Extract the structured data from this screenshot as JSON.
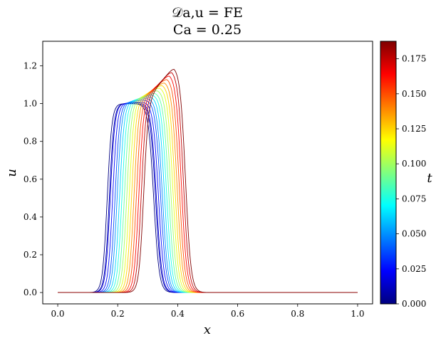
{
  "chart_data": {
    "type": "line",
    "title_lines": [
      "𝒟a,u = FE",
      "Ca = 0.25"
    ],
    "xlabel": "x",
    "ylabel": "u",
    "xlim": [
      -0.05,
      1.05
    ],
    "ylim": [
      -0.06,
      1.33
    ],
    "x_ticks": [
      0.0,
      0.2,
      0.4,
      0.6,
      0.8,
      1.0
    ],
    "x_tick_labels": [
      "0.0",
      "0.2",
      "0.4",
      "0.6",
      "0.8",
      "1.0"
    ],
    "y_ticks": [
      0.0,
      0.2,
      0.4,
      0.6,
      0.8,
      1.0,
      1.2
    ],
    "y_tick_labels": [
      "0.0",
      "0.2",
      "0.4",
      "0.6",
      "0.8",
      "1.0",
      "1.2"
    ],
    "grid": false,
    "colorbar": {
      "label": "t",
      "colormap": "jet",
      "range": [
        0.0,
        0.1875
      ],
      "ticks": [
        0.0,
        0.025,
        0.05,
        0.075,
        0.1,
        0.125,
        0.15,
        0.175
      ],
      "tick_labels": [
        "0.000",
        "0.025",
        "0.050",
        "0.075",
        "0.100",
        "0.125",
        "0.150",
        "0.175"
      ]
    },
    "series": [
      {
        "t": 0.0,
        "left_edge": 0.165,
        "peak_x": 0.198,
        "peak": 1.0,
        "right_edge": 0.32
      },
      {
        "t": 0.0125,
        "left_edge": 0.172,
        "peak_x": 0.205,
        "peak": 1.0,
        "right_edge": 0.326
      },
      {
        "t": 0.0125,
        "left_edge": 0.175,
        "peak_x": 0.208,
        "peak": 1.005,
        "right_edge": 0.329
      },
      {
        "t": 0.025,
        "left_edge": 0.183,
        "peak_x": 0.216,
        "peak": 1.01,
        "right_edge": 0.336
      },
      {
        "t": 0.0375,
        "left_edge": 0.191,
        "peak_x": 0.224,
        "peak": 1.02,
        "right_edge": 0.343
      },
      {
        "t": 0.05,
        "left_edge": 0.198,
        "peak_x": 0.232,
        "peak": 1.03,
        "right_edge": 0.349
      },
      {
        "t": 0.0625,
        "left_edge": 0.206,
        "peak_x": 0.24,
        "peak": 1.04,
        "right_edge": 0.356
      },
      {
        "t": 0.075,
        "left_edge": 0.214,
        "peak_x": 0.248,
        "peak": 1.05,
        "right_edge": 0.363
      },
      {
        "t": 0.0875,
        "left_edge": 0.222,
        "peak_x": 0.256,
        "peak": 1.06,
        "right_edge": 0.37
      },
      {
        "t": 0.1,
        "left_edge": 0.23,
        "peak_x": 0.264,
        "peak": 1.075,
        "right_edge": 0.377
      },
      {
        "t": 0.1125,
        "left_edge": 0.238,
        "peak_x": 0.272,
        "peak": 1.09,
        "right_edge": 0.384
      },
      {
        "t": 0.125,
        "left_edge": 0.246,
        "peak_x": 0.28,
        "peak": 1.105,
        "right_edge": 0.391
      },
      {
        "t": 0.1375,
        "left_edge": 0.254,
        "peak_x": 0.288,
        "peak": 1.12,
        "right_edge": 0.398
      },
      {
        "t": 0.15,
        "left_edge": 0.262,
        "peak_x": 0.296,
        "peak": 1.14,
        "right_edge": 0.405
      },
      {
        "t": 0.1625,
        "left_edge": 0.27,
        "peak_x": 0.304,
        "peak": 1.16,
        "right_edge": 0.412
      },
      {
        "t": 0.175,
        "left_edge": 0.278,
        "peak_x": 0.312,
        "peak": 1.18,
        "right_edge": 0.419
      },
      {
        "t": 0.1875,
        "left_edge": 0.286,
        "peak_x": 0.32,
        "peak": 1.2,
        "right_edge": 0.426
      }
    ]
  }
}
